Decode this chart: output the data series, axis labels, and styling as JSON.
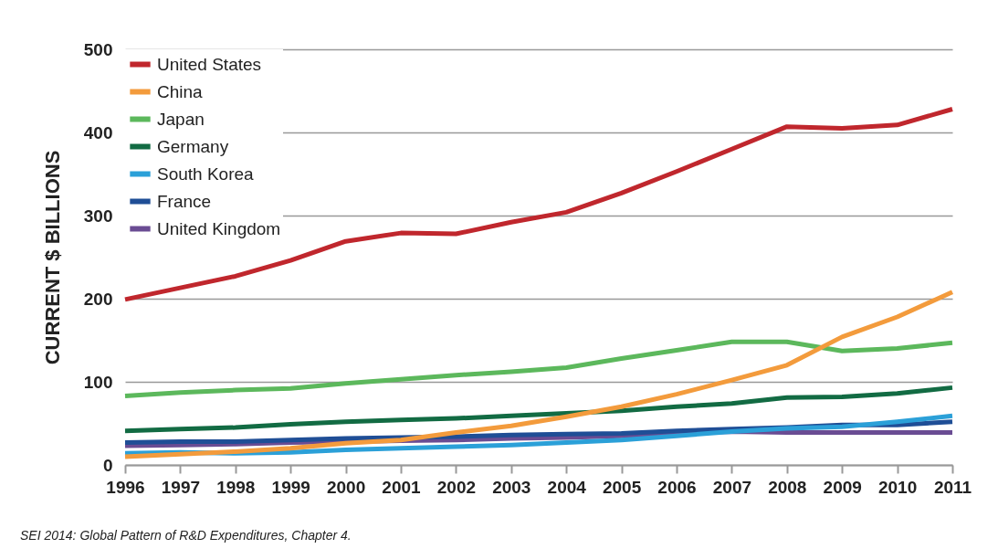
{
  "chart_data": {
    "type": "line",
    "ylabel": "CURRENT $ BILLIONS",
    "annotations": [
      "SEI 2014: Global Pattern of R&D Expenditures, Chapter 4."
    ],
    "categories": [
      "1996",
      "1997",
      "1998",
      "1999",
      "2000",
      "2001",
      "2002",
      "2003",
      "2004",
      "2005",
      "2006",
      "2007",
      "2008",
      "2009",
      "2010",
      "2011"
    ],
    "ylim": [
      0,
      500
    ],
    "yticks": [
      0,
      100,
      200,
      300,
      400,
      500
    ],
    "grid": "y",
    "legend": "top left",
    "marker": "none",
    "line_style": "solid",
    "series": [
      {
        "name": "United States",
        "color": "#c0272d",
        "values": [
          199,
          213,
          227,
          246,
          269,
          279,
          278,
          292,
          304,
          327,
          353,
          380,
          407,
          405,
          409,
          428
        ]
      },
      {
        "name": "China",
        "color": "#f39b3c",
        "values": [
          10,
          13,
          16,
          20,
          26,
          30,
          39,
          47,
          58,
          70,
          85,
          102,
          120,
          154,
          178,
          208
        ]
      },
      {
        "name": "Japan",
        "color": "#5cb85c",
        "values": [
          83,
          87,
          90,
          92,
          98,
          103,
          108,
          112,
          117,
          128,
          138,
          148,
          148,
          137,
          140,
          147
        ]
      },
      {
        "name": "Germany",
        "color": "#126b43",
        "values": [
          41,
          43,
          45,
          49,
          52,
          54,
          56,
          59,
          62,
          65,
          70,
          74,
          81,
          82,
          86,
          93
        ]
      },
      {
        "name": "South Korea",
        "color": "#2ba0d8",
        "values": [
          14,
          15,
          14,
          15,
          18,
          20,
          22,
          24,
          27,
          30,
          35,
          40,
          44,
          46,
          52,
          59
        ]
      },
      {
        "name": "France",
        "color": "#1f4e96",
        "values": [
          27,
          28,
          28,
          30,
          32,
          33,
          34,
          36,
          37,
          38,
          41,
          43,
          45,
          48,
          48,
          52
        ]
      },
      {
        "name": "United Kingdom",
        "color": "#6a4c93",
        "values": [
          23,
          24,
          25,
          27,
          28,
          29,
          30,
          32,
          33,
          35,
          38,
          40,
          39,
          39,
          39,
          39
        ]
      }
    ]
  }
}
